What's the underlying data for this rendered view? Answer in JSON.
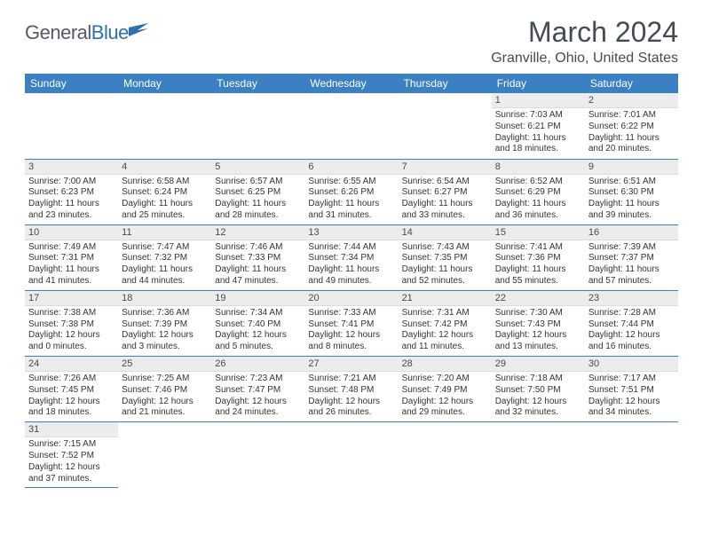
{
  "logo": {
    "word1": "General",
    "word2": "Blue",
    "icon_color": "#2f6fad"
  },
  "header": {
    "month_title": "March 2024",
    "location": "Granville, Ohio, United States"
  },
  "colors": {
    "header_bg": "#3a80c3",
    "border": "#3a80c3",
    "daynum_bg": "#ececec",
    "text": "#333333"
  },
  "weekdays": [
    "Sunday",
    "Monday",
    "Tuesday",
    "Wednesday",
    "Thursday",
    "Friday",
    "Saturday"
  ],
  "weeks": [
    [
      {
        "empty": true
      },
      {
        "empty": true
      },
      {
        "empty": true
      },
      {
        "empty": true
      },
      {
        "empty": true
      },
      {
        "n": "1",
        "sr": "Sunrise: 7:03 AM",
        "ss": "Sunset: 6:21 PM",
        "dl": "Daylight: 11 hours and 18 minutes."
      },
      {
        "n": "2",
        "sr": "Sunrise: 7:01 AM",
        "ss": "Sunset: 6:22 PM",
        "dl": "Daylight: 11 hours and 20 minutes."
      }
    ],
    [
      {
        "n": "3",
        "sr": "Sunrise: 7:00 AM",
        "ss": "Sunset: 6:23 PM",
        "dl": "Daylight: 11 hours and 23 minutes."
      },
      {
        "n": "4",
        "sr": "Sunrise: 6:58 AM",
        "ss": "Sunset: 6:24 PM",
        "dl": "Daylight: 11 hours and 25 minutes."
      },
      {
        "n": "5",
        "sr": "Sunrise: 6:57 AM",
        "ss": "Sunset: 6:25 PM",
        "dl": "Daylight: 11 hours and 28 minutes."
      },
      {
        "n": "6",
        "sr": "Sunrise: 6:55 AM",
        "ss": "Sunset: 6:26 PM",
        "dl": "Daylight: 11 hours and 31 minutes."
      },
      {
        "n": "7",
        "sr": "Sunrise: 6:54 AM",
        "ss": "Sunset: 6:27 PM",
        "dl": "Daylight: 11 hours and 33 minutes."
      },
      {
        "n": "8",
        "sr": "Sunrise: 6:52 AM",
        "ss": "Sunset: 6:29 PM",
        "dl": "Daylight: 11 hours and 36 minutes."
      },
      {
        "n": "9",
        "sr": "Sunrise: 6:51 AM",
        "ss": "Sunset: 6:30 PM",
        "dl": "Daylight: 11 hours and 39 minutes."
      }
    ],
    [
      {
        "n": "10",
        "sr": "Sunrise: 7:49 AM",
        "ss": "Sunset: 7:31 PM",
        "dl": "Daylight: 11 hours and 41 minutes."
      },
      {
        "n": "11",
        "sr": "Sunrise: 7:47 AM",
        "ss": "Sunset: 7:32 PM",
        "dl": "Daylight: 11 hours and 44 minutes."
      },
      {
        "n": "12",
        "sr": "Sunrise: 7:46 AM",
        "ss": "Sunset: 7:33 PM",
        "dl": "Daylight: 11 hours and 47 minutes."
      },
      {
        "n": "13",
        "sr": "Sunrise: 7:44 AM",
        "ss": "Sunset: 7:34 PM",
        "dl": "Daylight: 11 hours and 49 minutes."
      },
      {
        "n": "14",
        "sr": "Sunrise: 7:43 AM",
        "ss": "Sunset: 7:35 PM",
        "dl": "Daylight: 11 hours and 52 minutes."
      },
      {
        "n": "15",
        "sr": "Sunrise: 7:41 AM",
        "ss": "Sunset: 7:36 PM",
        "dl": "Daylight: 11 hours and 55 minutes."
      },
      {
        "n": "16",
        "sr": "Sunrise: 7:39 AM",
        "ss": "Sunset: 7:37 PM",
        "dl": "Daylight: 11 hours and 57 minutes."
      }
    ],
    [
      {
        "n": "17",
        "sr": "Sunrise: 7:38 AM",
        "ss": "Sunset: 7:38 PM",
        "dl": "Daylight: 12 hours and 0 minutes."
      },
      {
        "n": "18",
        "sr": "Sunrise: 7:36 AM",
        "ss": "Sunset: 7:39 PM",
        "dl": "Daylight: 12 hours and 3 minutes."
      },
      {
        "n": "19",
        "sr": "Sunrise: 7:34 AM",
        "ss": "Sunset: 7:40 PM",
        "dl": "Daylight: 12 hours and 5 minutes."
      },
      {
        "n": "20",
        "sr": "Sunrise: 7:33 AM",
        "ss": "Sunset: 7:41 PM",
        "dl": "Daylight: 12 hours and 8 minutes."
      },
      {
        "n": "21",
        "sr": "Sunrise: 7:31 AM",
        "ss": "Sunset: 7:42 PM",
        "dl": "Daylight: 12 hours and 11 minutes."
      },
      {
        "n": "22",
        "sr": "Sunrise: 7:30 AM",
        "ss": "Sunset: 7:43 PM",
        "dl": "Daylight: 12 hours and 13 minutes."
      },
      {
        "n": "23",
        "sr": "Sunrise: 7:28 AM",
        "ss": "Sunset: 7:44 PM",
        "dl": "Daylight: 12 hours and 16 minutes."
      }
    ],
    [
      {
        "n": "24",
        "sr": "Sunrise: 7:26 AM",
        "ss": "Sunset: 7:45 PM",
        "dl": "Daylight: 12 hours and 18 minutes."
      },
      {
        "n": "25",
        "sr": "Sunrise: 7:25 AM",
        "ss": "Sunset: 7:46 PM",
        "dl": "Daylight: 12 hours and 21 minutes."
      },
      {
        "n": "26",
        "sr": "Sunrise: 7:23 AM",
        "ss": "Sunset: 7:47 PM",
        "dl": "Daylight: 12 hours and 24 minutes."
      },
      {
        "n": "27",
        "sr": "Sunrise: 7:21 AM",
        "ss": "Sunset: 7:48 PM",
        "dl": "Daylight: 12 hours and 26 minutes."
      },
      {
        "n": "28",
        "sr": "Sunrise: 7:20 AM",
        "ss": "Sunset: 7:49 PM",
        "dl": "Daylight: 12 hours and 29 minutes."
      },
      {
        "n": "29",
        "sr": "Sunrise: 7:18 AM",
        "ss": "Sunset: 7:50 PM",
        "dl": "Daylight: 12 hours and 32 minutes."
      },
      {
        "n": "30",
        "sr": "Sunrise: 7:17 AM",
        "ss": "Sunset: 7:51 PM",
        "dl": "Daylight: 12 hours and 34 minutes."
      }
    ],
    [
      {
        "n": "31",
        "sr": "Sunrise: 7:15 AM",
        "ss": "Sunset: 7:52 PM",
        "dl": "Daylight: 12 hours and 37 minutes."
      },
      {
        "empty": true
      },
      {
        "empty": true
      },
      {
        "empty": true
      },
      {
        "empty": true
      },
      {
        "empty": true
      },
      {
        "empty": true
      }
    ]
  ]
}
